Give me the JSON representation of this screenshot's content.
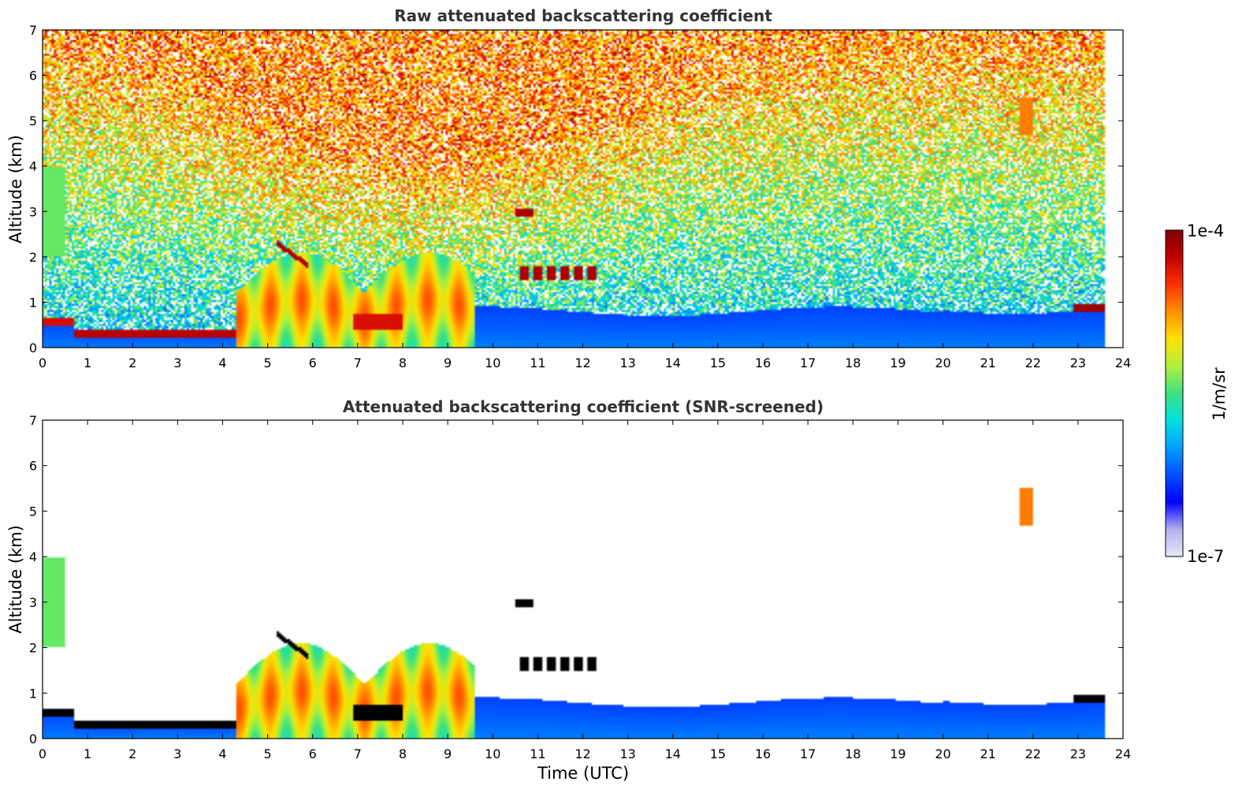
{
  "chart_data": [
    {
      "type": "heatmap",
      "id": "raw",
      "title": "Raw attenuated backscattering coefficient",
      "xlabel": "",
      "ylabel": "Altitude (km)",
      "xlim": [
        0,
        24
      ],
      "ylim": [
        0,
        7
      ],
      "x_ticks": [
        "0",
        "1",
        "2",
        "3",
        "4",
        "5",
        "6",
        "7",
        "8",
        "9",
        "10",
        "11",
        "12",
        "13",
        "14",
        "15",
        "16",
        "17",
        "18",
        "19",
        "20",
        "21",
        "22",
        "23",
        "24"
      ],
      "y_ticks": [
        "0",
        "1",
        "2",
        "3",
        "4",
        "5",
        "6",
        "7"
      ],
      "data_end_time": 23.6,
      "screened": false,
      "features": [
        {
          "name": "boundary layer",
          "time_range": [
            0,
            23.6
          ],
          "altitude_km": [
            0,
            0.9
          ],
          "level": "low"
        },
        {
          "name": "aerosol top layer (red)",
          "time_range": [
            0.7,
            4.3
          ],
          "altitude_km": [
            0.2,
            0.45
          ],
          "level": "very high"
        },
        {
          "name": "aerosol plumes",
          "time_range": [
            4.3,
            9.6
          ],
          "altitude_km": [
            0,
            2.2
          ],
          "level": "medium-high"
        },
        {
          "name": "cloud",
          "time_range": [
            10.5,
            12.4
          ],
          "altitude_km": [
            1.5,
            1.8
          ],
          "level": "very high"
        },
        {
          "name": "cloud",
          "time_range": [
            10.5,
            10.9
          ],
          "altitude_km": [
            2.9,
            3.0
          ],
          "level": "very high"
        },
        {
          "name": "cloud top",
          "time_range": [
            22.9,
            23.6
          ],
          "altitude_km": [
            0.8,
            0.95
          ],
          "level": "very high"
        },
        {
          "name": "high cloud",
          "time_range": [
            21.7,
            22.0
          ],
          "altitude_km": [
            4.7,
            5.5
          ],
          "level": "high"
        }
      ]
    },
    {
      "type": "heatmap",
      "id": "screened",
      "title": "Attenuated backscattering coefficient (SNR-screened)",
      "xlabel": "Time (UTC)",
      "ylabel": "Altitude (km)",
      "xlim": [
        0,
        24
      ],
      "ylim": [
        0,
        7
      ],
      "x_ticks": [
        "0",
        "1",
        "2",
        "3",
        "4",
        "5",
        "6",
        "7",
        "8",
        "9",
        "10",
        "11",
        "12",
        "13",
        "14",
        "15",
        "16",
        "17",
        "18",
        "19",
        "20",
        "21",
        "22",
        "23",
        "24"
      ],
      "y_ticks": [
        "0",
        "1",
        "2",
        "3",
        "4",
        "5",
        "6",
        "7"
      ],
      "data_end_time": 23.6,
      "screened": true,
      "features": [
        {
          "name": "boundary layer",
          "time_range": [
            0,
            23.6
          ],
          "altitude_km": [
            0,
            1.0
          ],
          "level": "low"
        },
        {
          "name": "aerosol top layer (black)",
          "time_range": [
            0.7,
            4.3
          ],
          "altitude_km": [
            0.2,
            0.45
          ],
          "level": "saturated"
        },
        {
          "name": "aerosol plumes",
          "time_range": [
            4.3,
            9.6
          ],
          "altitude_km": [
            0,
            2.2
          ],
          "level": "medium-high"
        },
        {
          "name": "cloud",
          "time_range": [
            10.5,
            12.4
          ],
          "altitude_km": [
            1.5,
            1.8
          ],
          "level": "saturated"
        },
        {
          "name": "high cloud",
          "time_range": [
            21.7,
            22.0
          ],
          "altitude_km": [
            4.7,
            5.5
          ],
          "level": "high"
        }
      ]
    }
  ],
  "colorbar": {
    "label": "1/m/sr",
    "max_label": "1e-4",
    "min_label": "1e-7",
    "scale": "log",
    "colors": [
      "#e8e8f8",
      "#b0b0f0",
      "#0000ff",
      "#0050ff",
      "#00a0ff",
      "#00e0e0",
      "#40e080",
      "#b0f040",
      "#ffe000",
      "#ff9000",
      "#ff3000",
      "#c00000",
      "#800000"
    ]
  }
}
